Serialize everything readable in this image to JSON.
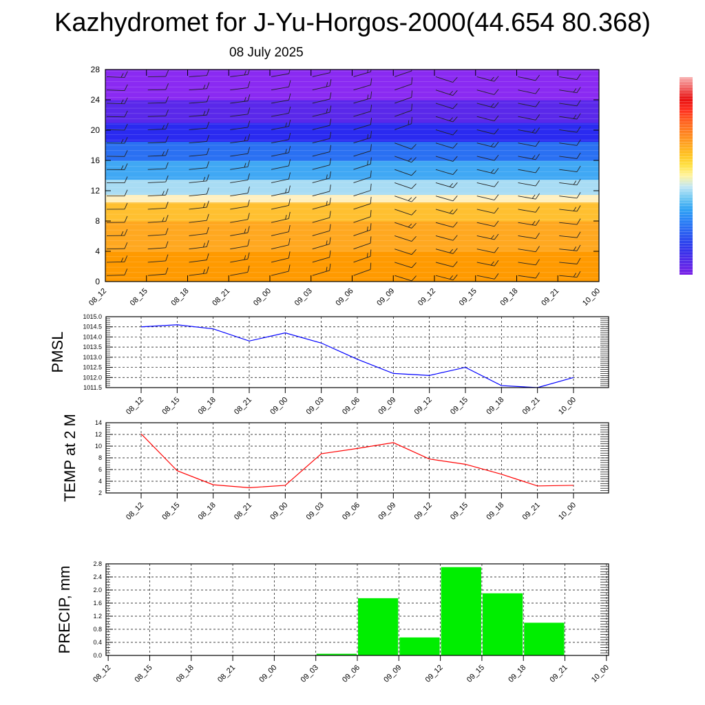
{
  "page": {
    "title": "Kazhydromet for J-Yu-Horgos-2000(44.654 80.368)",
    "date": "08 July 2025"
  },
  "chart_data": [
    {
      "type": "heatmap",
      "name": "vertical-profile",
      "x": [
        "08_12",
        "08_15",
        "08_18",
        "08_21",
        "09_00",
        "09_03",
        "09_06",
        "09_09",
        "09_12",
        "09_15",
        "09_18",
        "09_21",
        "10_00"
      ],
      "yticks": [
        0,
        4,
        8,
        12,
        16,
        20,
        24,
        28
      ],
      "ylim": [
        0,
        28
      ],
      "colorbar": {
        "levels": [
          "#7a20e6",
          "#5a28e8",
          "#3a30ea",
          "#2a44ee",
          "#2a64f2",
          "#2a84f6",
          "#30a4f4",
          "#70c8f2",
          "#c0e6f4",
          "#fff4a0",
          "#ffe040",
          "#ffc020",
          "#ffa020",
          "#ff8020",
          "#ff6020",
          "#ff3020",
          "#e81010",
          "#f06060",
          "#f8b0b0"
        ]
      },
      "bands": [
        {
          "from": 0,
          "to": 4,
          "color": "#ff9a00"
        },
        {
          "from": 4,
          "to": 8,
          "color": "#ffa820"
        },
        {
          "from": 8,
          "to": 10.5,
          "color": "#ffc030"
        },
        {
          "from": 10.5,
          "to": 11.5,
          "color": "#fff0c0"
        },
        {
          "from": 11.5,
          "to": 13.5,
          "color": "#a8dcf4"
        },
        {
          "from": 13.5,
          "to": 16,
          "color": "#40a8f4"
        },
        {
          "from": 16,
          "to": 18.5,
          "color": "#2a70f2"
        },
        {
          "from": 18.5,
          "to": 21,
          "color": "#2a2af0"
        },
        {
          "from": 21,
          "to": 24,
          "color": "#5a28ea"
        },
        {
          "from": 24,
          "to": 28,
          "color": "#8a2af2"
        }
      ],
      "wind_barbs": true
    },
    {
      "type": "line",
      "name": "pmsl",
      "ylabel": "PMSL",
      "x": [
        "08_12",
        "08_15",
        "08_18",
        "08_21",
        "09_00",
        "09_03",
        "09_06",
        "09_09",
        "09_12",
        "09_15",
        "09_18",
        "09_21",
        "10_00"
      ],
      "values": [
        1014.5,
        1014.6,
        1014.4,
        1013.8,
        1014.2,
        1013.7,
        1012.9,
        1012.2,
        1012.1,
        1012.5,
        1011.6,
        1011.5,
        1012.0
      ],
      "ylim": [
        1011.5,
        1015.0
      ],
      "yticks": [
        "1011.5",
        "1012.0",
        "1012.5",
        "1013.0",
        "1013.5",
        "1014.0",
        "1014.5",
        "1015.0"
      ],
      "color": "#0000ff",
      "grid": true
    },
    {
      "type": "line",
      "name": "temp",
      "ylabel": "TEMP at 2 M",
      "x": [
        "08_12",
        "08_15",
        "08_18",
        "08_21",
        "09_00",
        "09_03",
        "09_06",
        "09_09",
        "09_12",
        "09_15",
        "09_18",
        "09_21",
        "10_00"
      ],
      "values": [
        12.1,
        5.8,
        3.4,
        2.9,
        3.3,
        8.7,
        9.6,
        10.6,
        7.8,
        6.9,
        5.2,
        3.2,
        3.3
      ],
      "ylim": [
        2,
        14
      ],
      "yticks": [
        "2",
        "4",
        "6",
        "8",
        "10",
        "12",
        "14"
      ],
      "color": "#ff0000",
      "grid": true
    },
    {
      "type": "bar",
      "name": "precip",
      "ylabel": "PRECIP, mm",
      "x": [
        "08_12",
        "08_15",
        "08_18",
        "08_21",
        "09_00",
        "09_03",
        "09_06",
        "09_09",
        "09_12",
        "09_15",
        "09_18",
        "09_21",
        "10_00"
      ],
      "values": [
        0,
        0,
        0,
        0,
        0,
        0.05,
        1.75,
        0.55,
        2.7,
        1.9,
        1.0,
        0,
        0
      ],
      "ylim": [
        0,
        2.8
      ],
      "yticks": [
        "0.0",
        "0.4",
        "0.8",
        "1.2",
        "1.6",
        "2.0",
        "2.4",
        "2.8"
      ],
      "color": "#00ee00",
      "grid": true
    }
  ]
}
